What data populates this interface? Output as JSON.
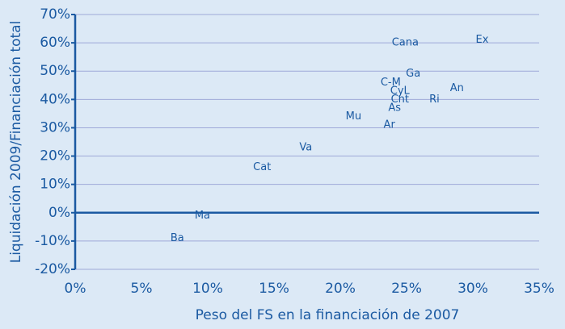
{
  "chart_data": {
    "type": "scatter",
    "xlabel": "Peso del FS en la financiación de 2007",
    "ylabel": "Liquidación 2009/Financiación total",
    "color": "#1b5aa2",
    "xlim": [
      0,
      35
    ],
    "ylim": [
      -20,
      70
    ],
    "xticks": [
      {
        "value": 0,
        "label": "0%"
      },
      {
        "value": 5,
        "label": "5%"
      },
      {
        "value": 10,
        "label": "10%"
      },
      {
        "value": 15,
        "label": "15%"
      },
      {
        "value": 20,
        "label": "20%"
      },
      {
        "value": 25,
        "label": "25%"
      },
      {
        "value": 30,
        "label": "30%"
      },
      {
        "value": 35,
        "label": "35%"
      }
    ],
    "yticks": [
      {
        "value": -20,
        "label": "-20%"
      },
      {
        "value": -10,
        "label": "-10%"
      },
      {
        "value": 0,
        "label": "0%"
      },
      {
        "value": 10,
        "label": "10%"
      },
      {
        "value": 20,
        "label": "20%"
      },
      {
        "value": 30,
        "label": "30%"
      },
      {
        "value": 40,
        "label": "40%"
      },
      {
        "value": 50,
        "label": "50%"
      },
      {
        "value": 60,
        "label": "60%"
      },
      {
        "value": 70,
        "label": "70%"
      }
    ],
    "grid": true,
    "labels": [
      "Ex",
      "Cana",
      "Ga",
      "C-M",
      "An",
      "CyL",
      "Cnt",
      "Ri",
      "As",
      "Mu",
      "Ar",
      "Va",
      "Cat",
      "Ma",
      "Ba"
    ],
    "x": [
      30.7,
      24.9,
      25.5,
      23.8,
      28.8,
      24.5,
      24.5,
      27.1,
      24.1,
      21.0,
      23.7,
      17.4,
      14.1,
      9.6,
      7.7
    ],
    "values": [
      61,
      60,
      49,
      46,
      44,
      43,
      40,
      40,
      37,
      34,
      31,
      23,
      16,
      -1,
      -9
    ]
  }
}
